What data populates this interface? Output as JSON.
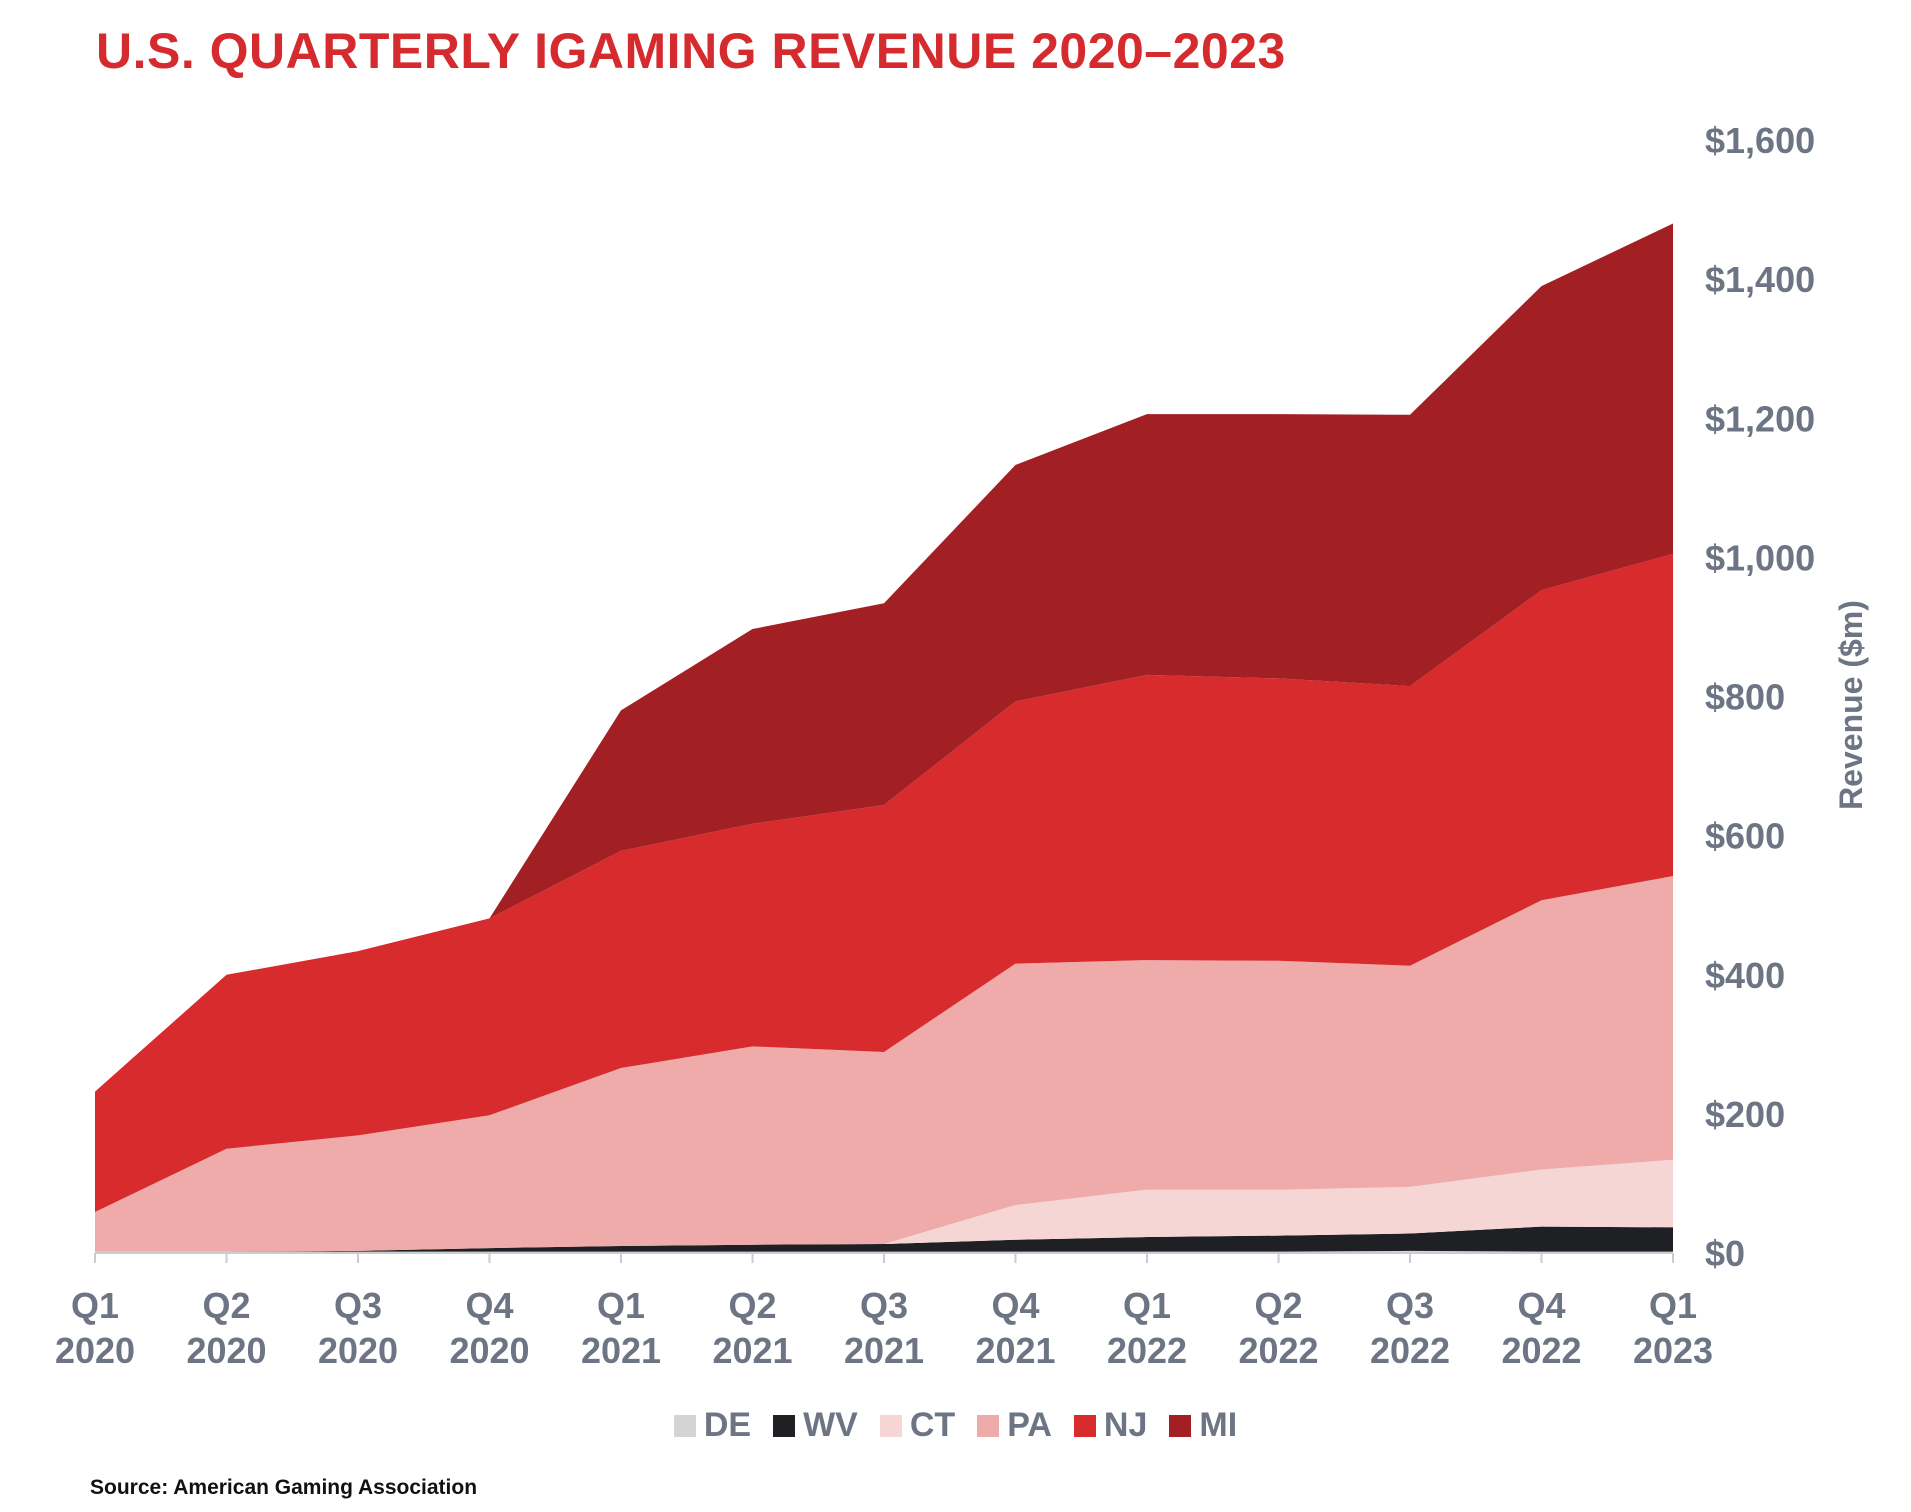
{
  "title": "U.S. QUARTERLY IGAMING REVENUE 2020–2023",
  "source": "Source: American Gaming Association",
  "chart_data": {
    "type": "area",
    "stacked": true,
    "title": "U.S. QUARTERLY IGAMING REVENUE 2020–2023",
    "ylabel": "Revenue ($m)",
    "xlabel": "",
    "ylim": [
      0,
      1600
    ],
    "yticks": [
      "$0",
      "$200",
      "$400",
      "$600",
      "$800",
      "$1,000",
      "$1,200",
      "$1,400",
      "$1,600"
    ],
    "ytick_values": [
      0,
      200,
      400,
      600,
      800,
      1000,
      1200,
      1400,
      1600
    ],
    "y_axis_side": "right",
    "legend_position": "bottom-center",
    "categories": [
      {
        "q": "Q1",
        "year": "2020"
      },
      {
        "q": "Q2",
        "year": "2020"
      },
      {
        "q": "Q3",
        "year": "2020"
      },
      {
        "q": "Q4",
        "year": "2020"
      },
      {
        "q": "Q1",
        "year": "2021"
      },
      {
        "q": "Q2",
        "year": "2021"
      },
      {
        "q": "Q3",
        "year": "2021"
      },
      {
        "q": "Q4",
        "year": "2021"
      },
      {
        "q": "Q1",
        "year": "2022"
      },
      {
        "q": "Q2",
        "year": "2022"
      },
      {
        "q": "Q3",
        "year": "2022"
      },
      {
        "q": "Q4",
        "year": "2022"
      },
      {
        "q": "Q1",
        "year": "2023"
      }
    ],
    "series": [
      {
        "name": "DE",
        "color": "#d4d4d4",
        "values": [
          2,
          2,
          2,
          2,
          2,
          2,
          2,
          2,
          2,
          2,
          3,
          2,
          2
        ]
      },
      {
        "name": "WV",
        "color": "#1f2023",
        "values": [
          0,
          0,
          1,
          5,
          8,
          10,
          11,
          17,
          21,
          23,
          25,
          36,
          35
        ]
      },
      {
        "name": "CT",
        "color": "#f6d5d5",
        "values": [
          0,
          0,
          0,
          0,
          0,
          0,
          0,
          50,
          68,
          66,
          67,
          82,
          97
        ]
      },
      {
        "name": "PA",
        "color": "#efaaaa",
        "values": [
          57,
          148,
          166,
          191,
          256,
          285,
          276,
          347,
          330,
          329,
          318,
          387,
          408
        ]
      },
      {
        "name": "NJ",
        "color": "#d72b2e",
        "values": [
          173,
          250,
          265,
          283,
          312,
          320,
          355,
          377,
          410,
          406,
          402,
          446,
          463
        ]
      },
      {
        "name": "MI",
        "color": "#a21f24",
        "values": [
          0,
          0,
          0,
          0,
          202,
          280,
          290,
          340,
          375,
          380,
          390,
          437,
          475
        ]
      }
    ]
  }
}
